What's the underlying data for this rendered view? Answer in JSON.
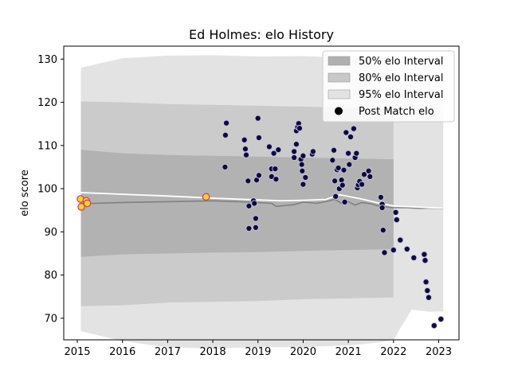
{
  "chart_data": {
    "type": "scatter",
    "title": "Ed Holmes: elo History",
    "xlabel": "",
    "ylabel": "elo score",
    "xlim": [
      2014.7,
      2023.45
    ],
    "ylim": [
      65,
      133
    ],
    "xticks": [
      2015,
      2016,
      2017,
      2018,
      2019,
      2020,
      2021,
      2022,
      2023
    ],
    "yticks": [
      70,
      80,
      90,
      100,
      110,
      120,
      130
    ],
    "grid": false,
    "legend_position": "top-right",
    "legend": [
      {
        "label": "50% elo Interval",
        "kind": "patch",
        "color": "#b0b0b0"
      },
      {
        "label": "80% elo Interval",
        "kind": "patch",
        "color": "#c8c8c8"
      },
      {
        "label": "95% elo Interval",
        "kind": "patch",
        "color": "#e3e3e3"
      },
      {
        "label": "Post Match elo",
        "kind": "marker",
        "color": "#000000"
      }
    ],
    "colors": {
      "band_50": "#b2b2b2",
      "band_80": "#cbcbcb",
      "band_95": "#e3e3e3",
      "mean_line": "#808080",
      "fit_line": "#ffffff",
      "points_dark": "#0d0b3e",
      "points_highlight": "#f2d13a",
      "points_highlight_edge": "#d6454b"
    },
    "band_95_upper": [
      [
        2015.08,
        128.0
      ],
      [
        2016.0,
        130.2
      ],
      [
        2017.0,
        130.8
      ],
      [
        2018.0,
        130.9
      ],
      [
        2019.0,
        130.6
      ],
      [
        2020.0,
        130.7
      ],
      [
        2021.0,
        130.3
      ],
      [
        2021.7,
        129.6
      ],
      [
        2022.0,
        127.0
      ],
      [
        2022.4,
        119.5
      ],
      [
        2022.8,
        119.6
      ],
      [
        2023.1,
        119.4
      ]
    ],
    "band_95_lower": [
      [
        2015.08,
        67.0
      ],
      [
        2016.0,
        64.7
      ],
      [
        2017.0,
        63.3
      ],
      [
        2018.0,
        63.0
      ],
      [
        2019.0,
        63.3
      ],
      [
        2020.0,
        63.3
      ],
      [
        2021.0,
        63.7
      ],
      [
        2021.7,
        64.4
      ],
      [
        2022.0,
        65.0
      ],
      [
        2022.4,
        72.0
      ],
      [
        2022.8,
        71.5
      ],
      [
        2023.1,
        71.6
      ]
    ],
    "band_80_upper": [
      [
        2015.08,
        120.2
      ],
      [
        2016.0,
        120.0
      ],
      [
        2017.0,
        119.6
      ],
      [
        2018.0,
        119.4
      ],
      [
        2019.0,
        119.2
      ],
      [
        2020.0,
        119.0
      ],
      [
        2021.0,
        118.8
      ],
      [
        2022.0,
        118.6
      ]
    ],
    "band_80_lower": [
      [
        2015.08,
        72.8
      ],
      [
        2016.0,
        73.0
      ],
      [
        2017.0,
        73.6
      ],
      [
        2018.0,
        73.8
      ],
      [
        2019.0,
        74.0
      ],
      [
        2020.0,
        74.4
      ],
      [
        2021.0,
        74.6
      ],
      [
        2022.0,
        74.8
      ]
    ],
    "band_50_upper": [
      [
        2015.08,
        109.0
      ],
      [
        2016.0,
        108.2
      ],
      [
        2017.0,
        107.8
      ],
      [
        2018.0,
        107.6
      ],
      [
        2019.0,
        107.4
      ],
      [
        2020.0,
        107.2
      ],
      [
        2021.0,
        107.0
      ],
      [
        2022.0,
        106.8
      ]
    ],
    "band_50_lower": [
      [
        2015.08,
        84.2
      ],
      [
        2016.0,
        84.8
      ],
      [
        2017.0,
        85.0
      ],
      [
        2018.0,
        85.2
      ],
      [
        2019.0,
        85.3
      ],
      [
        2020.0,
        85.6
      ],
      [
        2021.0,
        85.8
      ],
      [
        2022.0,
        86.0
      ]
    ],
    "mean_series": [
      [
        2015.08,
        96.5
      ],
      [
        2016.0,
        96.8
      ],
      [
        2017.0,
        97.0
      ],
      [
        2018.0,
        97.2
      ],
      [
        2018.8,
        96.9
      ],
      [
        2019.3,
        96.6
      ],
      [
        2019.4,
        95.9
      ],
      [
        2019.6,
        96.1
      ],
      [
        2019.8,
        96.3
      ],
      [
        2020.0,
        96.9
      ],
      [
        2020.3,
        96.6
      ],
      [
        2020.5,
        97.0
      ],
      [
        2020.7,
        97.5
      ],
      [
        2020.85,
        96.6
      ],
      [
        2021.0,
        97.0
      ],
      [
        2021.15,
        96.2
      ],
      [
        2021.3,
        96.8
      ],
      [
        2021.5,
        96.5
      ],
      [
        2021.7,
        95.9
      ],
      [
        2022.0,
        95.6
      ],
      [
        2022.3,
        95.6
      ],
      [
        2022.6,
        95.4
      ],
      [
        2022.8,
        95.5
      ],
      [
        2023.1,
        95.4
      ]
    ],
    "fit_series": [
      [
        2015.08,
        99.1
      ],
      [
        2016.0,
        98.7
      ],
      [
        2017.0,
        98.3
      ],
      [
        2018.0,
        97.8
      ],
      [
        2019.0,
        97.4
      ],
      [
        2019.5,
        97.2
      ],
      [
        2020.0,
        97.3
      ],
      [
        2020.5,
        97.5
      ],
      [
        2020.8,
        98.6
      ],
      [
        2021.0,
        98.2
      ],
      [
        2021.3,
        97.6
      ],
      [
        2021.7,
        96.6
      ],
      [
        2022.0,
        96.0
      ],
      [
        2022.4,
        95.8
      ],
      [
        2022.8,
        95.6
      ],
      [
        2023.1,
        95.5
      ]
    ],
    "points_highlight": [
      [
        2015.07,
        97.6
      ],
      [
        2015.09,
        95.8
      ],
      [
        2015.2,
        97.2
      ],
      [
        2015.22,
        96.6
      ],
      [
        2017.85,
        98.1
      ]
    ],
    "points": [
      [
        2018.3,
        115.2
      ],
      [
        2018.28,
        112.4
      ],
      [
        2018.27,
        105.0
      ],
      [
        2018.7,
        111.3
      ],
      [
        2018.72,
        109.2
      ],
      [
        2018.74,
        107.8
      ],
      [
        2018.78,
        101.8
      ],
      [
        2018.8,
        96.0
      ],
      [
        2018.8,
        90.8
      ],
      [
        2018.9,
        97.2
      ],
      [
        2018.92,
        96.6
      ],
      [
        2018.95,
        93.1
      ],
      [
        2018.95,
        91.0
      ],
      [
        2018.97,
        102.0
      ],
      [
        2019.0,
        116.3
      ],
      [
        2019.02,
        111.8
      ],
      [
        2019.02,
        103.1
      ],
      [
        2019.25,
        109.7
      ],
      [
        2019.3,
        104.6
      ],
      [
        2019.3,
        102.8
      ],
      [
        2019.35,
        108.2
      ],
      [
        2019.38,
        104.6
      ],
      [
        2019.4,
        102.2
      ],
      [
        2019.45,
        109.0
      ],
      [
        2019.8,
        108.6
      ],
      [
        2019.8,
        107.2
      ],
      [
        2019.85,
        113.4
      ],
      [
        2019.85,
        110.3
      ],
      [
        2019.88,
        114.3
      ],
      [
        2019.9,
        115.1
      ],
      [
        2019.92,
        114.0
      ],
      [
        2019.95,
        106.8
      ],
      [
        2019.97,
        105.6
      ],
      [
        2019.98,
        104.1
      ],
      [
        2020.0,
        101.0
      ],
      [
        2020.0,
        107.6
      ],
      [
        2020.05,
        102.6
      ],
      [
        2020.2,
        108.0
      ],
      [
        2020.22,
        108.6
      ],
      [
        2020.65,
        106.6
      ],
      [
        2020.68,
        108.9
      ],
      [
        2020.7,
        101.8
      ],
      [
        2020.72,
        98.2
      ],
      [
        2020.75,
        104.4
      ],
      [
        2020.78,
        104.8
      ],
      [
        2020.8,
        100.0
      ],
      [
        2020.85,
        102.0
      ],
      [
        2020.87,
        100.8
      ],
      [
        2020.9,
        104.3
      ],
      [
        2020.92,
        96.9
      ],
      [
        2020.95,
        113.0
      ],
      [
        2021.0,
        108.2
      ],
      [
        2021.02,
        105.6
      ],
      [
        2021.05,
        112.0
      ],
      [
        2021.12,
        113.9
      ],
      [
        2021.15,
        107.2
      ],
      [
        2021.18,
        108.2
      ],
      [
        2021.2,
        100.2
      ],
      [
        2021.22,
        100.9
      ],
      [
        2021.25,
        101.7
      ],
      [
        2021.3,
        101.0
      ],
      [
        2021.35,
        103.3
      ],
      [
        2021.45,
        104.1
      ],
      [
        2021.48,
        102.8
      ],
      [
        2021.72,
        98.0
      ],
      [
        2021.75,
        96.4
      ],
      [
        2021.75,
        95.6
      ],
      [
        2021.77,
        90.4
      ],
      [
        2021.8,
        85.2
      ],
      [
        2022.0,
        85.8
      ],
      [
        2022.05,
        94.5
      ],
      [
        2022.07,
        92.8
      ],
      [
        2022.15,
        88.1
      ],
      [
        2022.3,
        86.0
      ],
      [
        2022.45,
        84.0
      ],
      [
        2022.68,
        84.8
      ],
      [
        2022.7,
        83.4
      ],
      [
        2022.72,
        78.4
      ],
      [
        2022.75,
        76.4
      ],
      [
        2022.78,
        74.8
      ],
      [
        2022.9,
        68.3
      ],
      [
        2023.05,
        69.8
      ]
    ]
  }
}
